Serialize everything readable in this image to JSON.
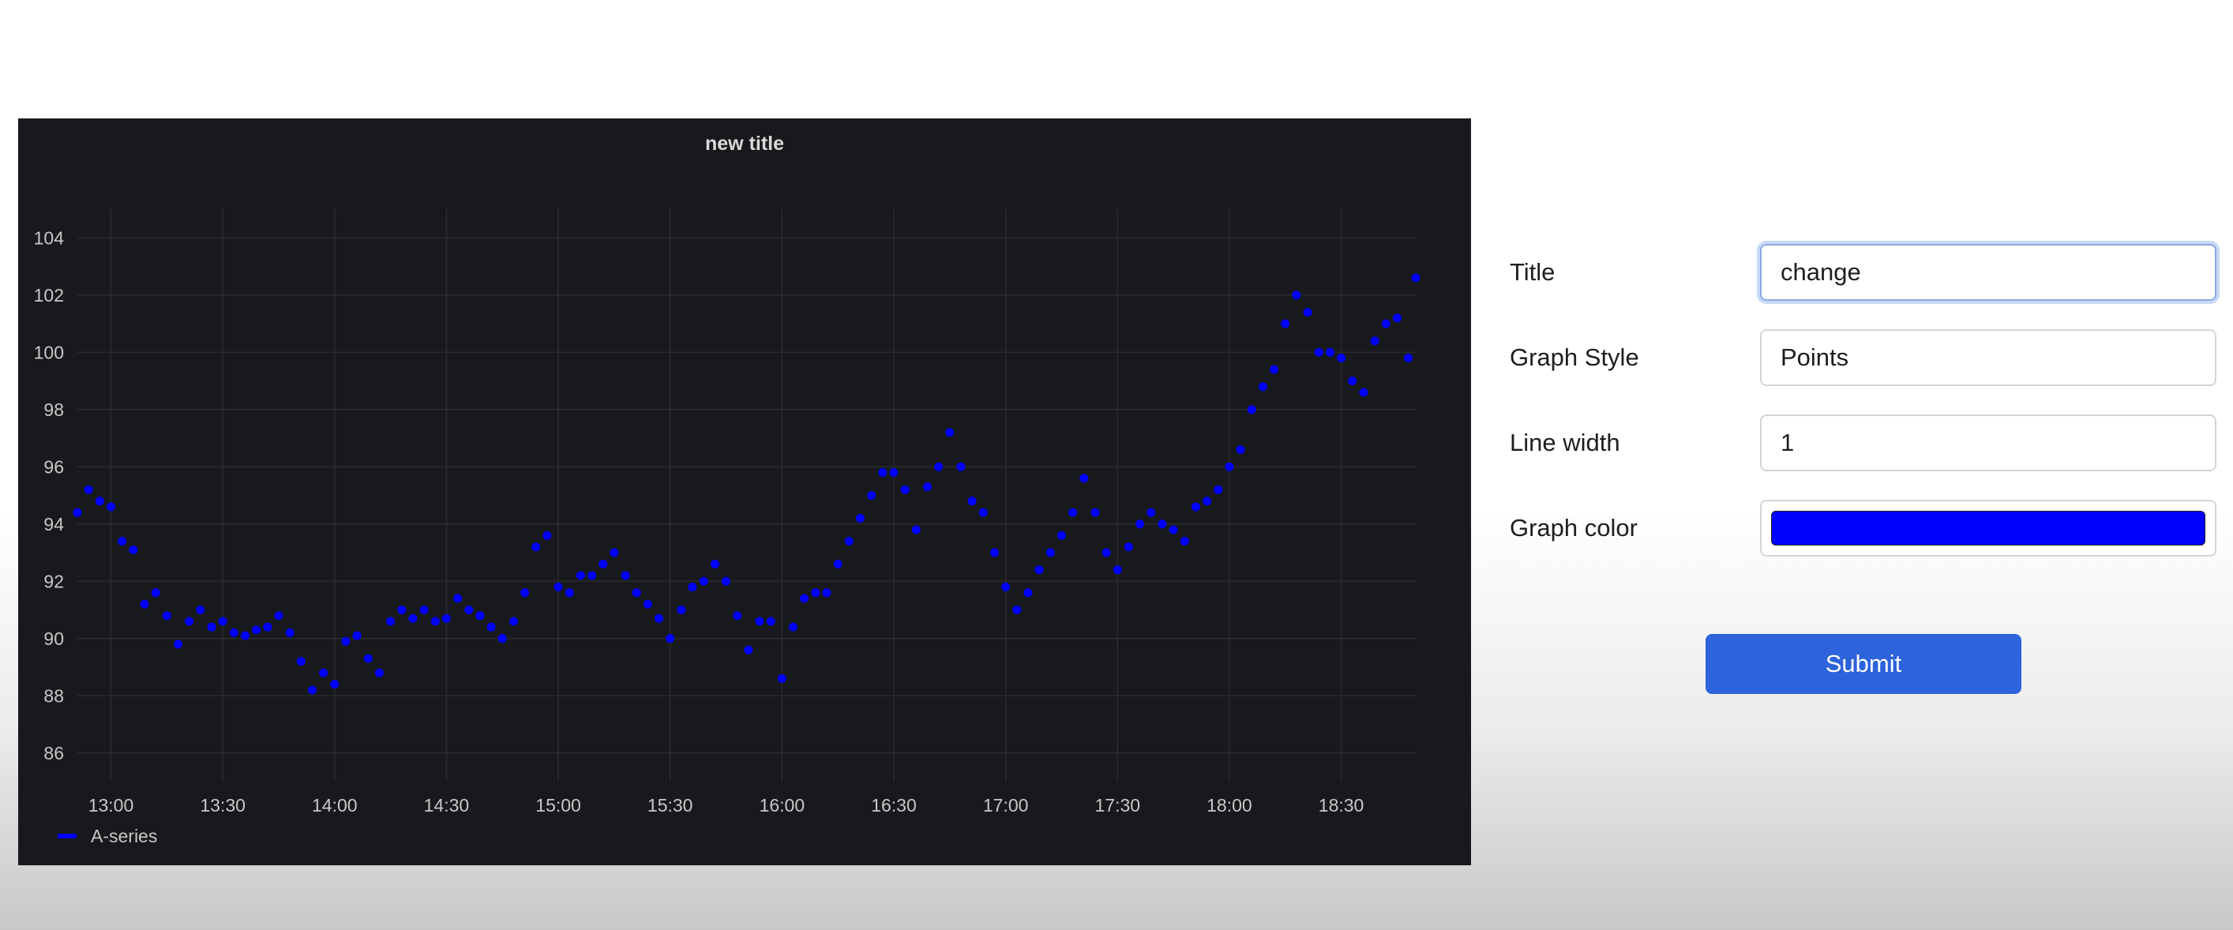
{
  "chart_data": {
    "type": "scatter",
    "title": "new title",
    "legend": "bottom-left",
    "grid": true,
    "ylim": [
      85,
      105
    ],
    "yticks": [
      86,
      88,
      90,
      92,
      94,
      96,
      98,
      100,
      102,
      104
    ],
    "xlim": [
      "12:51",
      "18:50"
    ],
    "xticks": [
      "13:00",
      "13:30",
      "14:00",
      "14:30",
      "15:00",
      "15:30",
      "16:00",
      "16:30",
      "17:00",
      "17:30",
      "18:00",
      "18:30"
    ],
    "series": [
      {
        "name": "A-series",
        "color": "#0000ff",
        "x": [
          "12:51",
          "12:54",
          "12:57",
          "13:00",
          "13:03",
          "13:06",
          "13:09",
          "13:12",
          "13:15",
          "13:18",
          "13:21",
          "13:24",
          "13:27",
          "13:30",
          "13:33",
          "13:36",
          "13:39",
          "13:42",
          "13:45",
          "13:48",
          "13:51",
          "13:54",
          "13:57",
          "14:00",
          "14:03",
          "14:06",
          "14:09",
          "14:12",
          "14:15",
          "14:18",
          "14:21",
          "14:24",
          "14:27",
          "14:30",
          "14:33",
          "14:36",
          "14:39",
          "14:42",
          "14:45",
          "14:48",
          "14:51",
          "14:54",
          "14:57",
          "15:00",
          "15:03",
          "15:06",
          "15:09",
          "15:12",
          "15:15",
          "15:18",
          "15:21",
          "15:24",
          "15:27",
          "15:30",
          "15:33",
          "15:36",
          "15:39",
          "15:42",
          "15:45",
          "15:48",
          "15:51",
          "15:54",
          "15:57",
          "16:00",
          "16:03",
          "16:06",
          "16:09",
          "16:12",
          "16:15",
          "16:18",
          "16:21",
          "16:24",
          "16:27",
          "16:30",
          "16:33",
          "16:36",
          "16:39",
          "16:42",
          "16:45",
          "16:48",
          "16:51",
          "16:54",
          "16:57",
          "17:00",
          "17:03",
          "17:06",
          "17:09",
          "17:12",
          "17:15",
          "17:18",
          "17:21",
          "17:24",
          "17:27",
          "17:30",
          "17:33",
          "17:36",
          "17:39",
          "17:42",
          "17:45",
          "17:48",
          "17:51",
          "17:54",
          "17:57",
          "18:00",
          "18:03",
          "18:06",
          "18:09",
          "18:12",
          "18:15",
          "18:18",
          "18:21",
          "18:24",
          "18:27",
          "18:30",
          "18:33",
          "18:36",
          "18:39",
          "18:42",
          "18:45",
          "18:48",
          "18:50"
        ],
        "y": [
          94.4,
          95.2,
          94.8,
          94.6,
          93.4,
          93.1,
          91.2,
          91.6,
          90.8,
          89.8,
          90.6,
          91.0,
          90.4,
          90.6,
          90.2,
          90.1,
          90.3,
          90.4,
          90.8,
          90.2,
          89.2,
          88.2,
          88.8,
          88.4,
          89.9,
          90.1,
          89.3,
          88.8,
          90.6,
          91.0,
          90.7,
          91.0,
          90.6,
          90.7,
          91.4,
          91.0,
          90.8,
          90.4,
          90.0,
          90.6,
          91.6,
          93.2,
          93.6,
          91.8,
          91.6,
          92.2,
          92.2,
          92.6,
          93.0,
          92.2,
          91.6,
          91.2,
          90.7,
          90.0,
          91.0,
          91.8,
          92.0,
          92.6,
          92.0,
          90.8,
          89.6,
          90.6,
          90.6,
          88.6,
          90.4,
          91.4,
          91.6,
          91.6,
          92.6,
          93.4,
          94.2,
          95.0,
          95.8,
          95.8,
          95.2,
          93.8,
          95.3,
          96.0,
          97.2,
          96.0,
          94.8,
          94.4,
          93.0,
          91.8,
          91.0,
          91.6,
          92.4,
          93.0,
          93.6,
          94.4,
          95.6,
          94.4,
          93.0,
          92.4,
          93.2,
          94.0,
          94.4,
          94.0,
          93.8,
          93.4,
          94.6,
          94.8,
          95.2,
          96.0,
          96.6,
          98.0,
          98.8,
          99.4,
          101.0,
          102.0,
          101.4,
          100.0,
          100.0,
          99.8,
          99.0,
          98.6,
          100.4,
          101.0,
          101.2,
          99.8,
          102.6
        ]
      }
    ]
  },
  "form": {
    "title_label": "Title",
    "title_value": "change ",
    "style_label": "Graph Style",
    "style_value": "Points",
    "width_label": "Line width",
    "width_value": "1",
    "color_label": "Graph color",
    "color_value": "#0000ff"
  },
  "submit_label": "Submit"
}
